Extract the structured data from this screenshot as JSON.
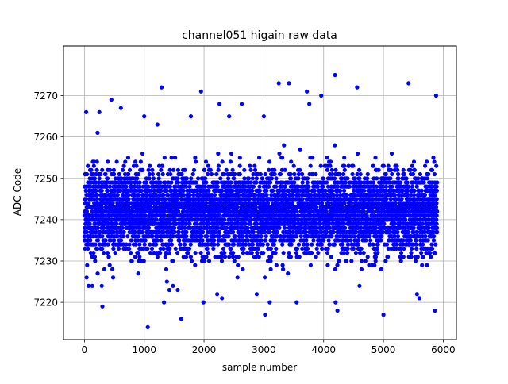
{
  "chart_data": {
    "type": "scatter",
    "title": "channel051 higain raw data",
    "xlabel": "sample number",
    "ylabel": "ADC Code",
    "xlim": [
      -350,
      6220
    ],
    "ylim": [
      7211,
      7282
    ],
    "xticks": [
      0,
      1000,
      2000,
      3000,
      4000,
      5000,
      6000
    ],
    "yticks": [
      7220,
      7230,
      7240,
      7250,
      7260,
      7270
    ],
    "grid": true,
    "marker_color": "#0000ff",
    "series": [
      {
        "n_points": 5900,
        "x_range": [
          0,
          5899
        ],
        "y_center": 7242,
        "y_typical_range": [
          7228,
          7258
        ],
        "outliers": [
          {
            "x": 30,
            "y": 7266
          },
          {
            "x": 70,
            "y": 7224
          },
          {
            "x": 130,
            "y": 7224
          },
          {
            "x": 220,
            "y": 7261
          },
          {
            "x": 250,
            "y": 7266
          },
          {
            "x": 290,
            "y": 7224
          },
          {
            "x": 300,
            "y": 7219
          },
          {
            "x": 450,
            "y": 7269
          },
          {
            "x": 480,
            "y": 7226
          },
          {
            "x": 610,
            "y": 7267
          },
          {
            "x": 900,
            "y": 7227
          },
          {
            "x": 1000,
            "y": 7265
          },
          {
            "x": 1060,
            "y": 7214
          },
          {
            "x": 1220,
            "y": 7263
          },
          {
            "x": 1290,
            "y": 7272
          },
          {
            "x": 1330,
            "y": 7220
          },
          {
            "x": 1380,
            "y": 7225
          },
          {
            "x": 1420,
            "y": 7223
          },
          {
            "x": 1480,
            "y": 7224
          },
          {
            "x": 1560,
            "y": 7223
          },
          {
            "x": 1620,
            "y": 7216
          },
          {
            "x": 1780,
            "y": 7265
          },
          {
            "x": 1950,
            "y": 7271
          },
          {
            "x": 1990,
            "y": 7220
          },
          {
            "x": 2220,
            "y": 7222
          },
          {
            "x": 2260,
            "y": 7268
          },
          {
            "x": 2300,
            "y": 7221
          },
          {
            "x": 2420,
            "y": 7265
          },
          {
            "x": 2560,
            "y": 7226
          },
          {
            "x": 2630,
            "y": 7268
          },
          {
            "x": 2880,
            "y": 7222
          },
          {
            "x": 3000,
            "y": 7265
          },
          {
            "x": 3020,
            "y": 7217
          },
          {
            "x": 3100,
            "y": 7220
          },
          {
            "x": 3250,
            "y": 7273
          },
          {
            "x": 3420,
            "y": 7273
          },
          {
            "x": 3550,
            "y": 7220
          },
          {
            "x": 3720,
            "y": 7271
          },
          {
            "x": 3760,
            "y": 7268
          },
          {
            "x": 3960,
            "y": 7270
          },
          {
            "x": 4190,
            "y": 7275
          },
          {
            "x": 4230,
            "y": 7218
          },
          {
            "x": 4200,
            "y": 7220
          },
          {
            "x": 4560,
            "y": 7272
          },
          {
            "x": 4600,
            "y": 7224
          },
          {
            "x": 5000,
            "y": 7217
          },
          {
            "x": 5420,
            "y": 7273
          },
          {
            "x": 5560,
            "y": 7222
          },
          {
            "x": 5600,
            "y": 7221
          },
          {
            "x": 5860,
            "y": 7218
          },
          {
            "x": 5880,
            "y": 7270
          }
        ]
      }
    ]
  }
}
